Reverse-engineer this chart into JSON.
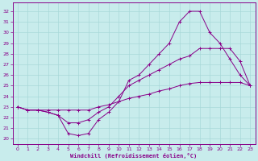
{
  "xlabel": "Windchill (Refroidissement éolien,°C)",
  "bg_color": "#c8ecec",
  "line_color": "#880088",
  "grid_color": "#a8d8d8",
  "xlim": [
    -0.5,
    23.5
  ],
  "ylim": [
    19.5,
    32.8
  ],
  "xticks": [
    0,
    1,
    2,
    3,
    4,
    5,
    6,
    7,
    8,
    9,
    10,
    11,
    12,
    13,
    14,
    15,
    16,
    17,
    18,
    19,
    20,
    21,
    22,
    23
  ],
  "yticks": [
    20,
    21,
    22,
    23,
    24,
    25,
    26,
    27,
    28,
    29,
    30,
    31,
    32
  ],
  "curve1_x": [
    0,
    1,
    2,
    3,
    4,
    5,
    6,
    7,
    8,
    9,
    10,
    11,
    12,
    13,
    14,
    15,
    16,
    17,
    18,
    19,
    20,
    21,
    22,
    23
  ],
  "curve1_y": [
    23.0,
    22.7,
    22.7,
    22.5,
    22.2,
    20.5,
    20.3,
    20.5,
    21.8,
    22.5,
    23.5,
    25.5,
    26.0,
    27.0,
    28.0,
    29.0,
    31.0,
    32.0,
    32.0,
    30.0,
    29.0,
    27.5,
    26.0,
    25.0
  ],
  "curve2_x": [
    0,
    1,
    2,
    3,
    4,
    5,
    6,
    7,
    8,
    9,
    10,
    11,
    12,
    13,
    14,
    15,
    16,
    17,
    18,
    19,
    20,
    21,
    22,
    23
  ],
  "curve2_y": [
    23.0,
    22.7,
    22.7,
    22.5,
    22.2,
    21.5,
    21.5,
    21.8,
    22.5,
    23.0,
    24.0,
    25.0,
    25.5,
    26.0,
    26.5,
    27.0,
    27.5,
    27.8,
    28.5,
    28.5,
    28.5,
    28.5,
    27.3,
    25.0
  ],
  "curve3_x": [
    0,
    1,
    2,
    3,
    4,
    5,
    6,
    7,
    8,
    9,
    10,
    11,
    12,
    13,
    14,
    15,
    16,
    17,
    18,
    19,
    20,
    21,
    22,
    23
  ],
  "curve3_y": [
    23.0,
    22.7,
    22.7,
    22.7,
    22.7,
    22.7,
    22.7,
    22.7,
    23.0,
    23.2,
    23.5,
    23.8,
    24.0,
    24.2,
    24.5,
    24.7,
    25.0,
    25.2,
    25.3,
    25.3,
    25.3,
    25.3,
    25.3,
    25.0
  ]
}
